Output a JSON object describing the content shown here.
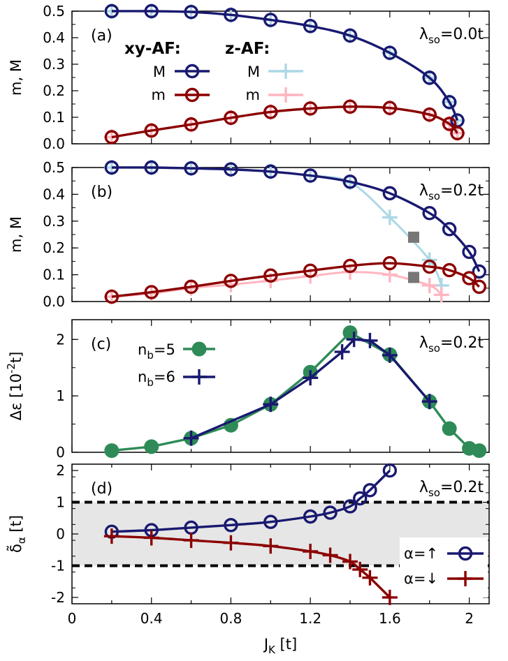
{
  "chart_data": [
    {
      "id": "a",
      "type": "line",
      "panel_label": "(a)",
      "annotation": "λso=0.0t",
      "ylabel": "m, M",
      "ylim": [
        0,
        0.5
      ],
      "yticks": [
        "0.0",
        "0.1",
        "0.2",
        "0.3",
        "0.4",
        "0.5"
      ],
      "legend": {
        "placement": "upper-left",
        "header_xy": "xy-AF:",
        "header_z": "z-AF:",
        "label_M": "M",
        "label_m": "m"
      },
      "series": [
        {
          "name": "M",
          "group": "z-AF",
          "color": "#add8e6",
          "marker": "plus",
          "x": [
            0.2,
            0.4,
            0.6,
            0.8,
            1.0,
            1.2,
            1.4,
            1.6,
            1.8,
            1.9,
            1.94
          ],
          "y": [
            0.5,
            0.5,
            0.497,
            0.486,
            0.467,
            0.444,
            0.408,
            0.343,
            0.249,
            0.157,
            0.088
          ]
        },
        {
          "name": "m",
          "group": "z-AF",
          "color": "#ffb6c1",
          "marker": "plus",
          "x": [
            0.2,
            0.4,
            0.6,
            0.8,
            1.0,
            1.2,
            1.4,
            1.6,
            1.8,
            1.9,
            1.94
          ],
          "y": [
            0.025,
            0.05,
            0.073,
            0.098,
            0.12,
            0.133,
            0.14,
            0.135,
            0.11,
            0.075,
            0.04
          ]
        },
        {
          "name": "M",
          "group": "xy-AF",
          "color": "#191970",
          "marker": "circle",
          "x": [
            0.2,
            0.4,
            0.6,
            0.8,
            1.0,
            1.2,
            1.4,
            1.6,
            1.8,
            1.9,
            1.94
          ],
          "y": [
            0.5,
            0.5,
            0.497,
            0.486,
            0.467,
            0.444,
            0.408,
            0.343,
            0.249,
            0.157,
            0.088
          ]
        },
        {
          "name": "m",
          "group": "xy-AF",
          "color": "#8b0000",
          "marker": "circle",
          "x": [
            0.2,
            0.4,
            0.6,
            0.8,
            1.0,
            1.2,
            1.4,
            1.6,
            1.8,
            1.9,
            1.94
          ],
          "y": [
            0.025,
            0.05,
            0.073,
            0.098,
            0.12,
            0.133,
            0.14,
            0.135,
            0.11,
            0.075,
            0.04
          ]
        }
      ]
    },
    {
      "id": "b",
      "type": "line",
      "panel_label": "(b)",
      "annotation": "λso=0.2t",
      "ylabel": "m, M",
      "ylim": [
        0,
        0.5
      ],
      "yticks": [
        "0.0",
        "0.1",
        "0.2",
        "0.3",
        "0.4",
        "0.5"
      ],
      "series": [
        {
          "name": "M",
          "group": "z-AF",
          "color": "#add8e6",
          "marker": "plus",
          "x": [
            0.2,
            0.4,
            0.6,
            0.8,
            1.0,
            1.2,
            1.4,
            1.6,
            1.8,
            1.86
          ],
          "y": [
            0.5,
            0.5,
            0.497,
            0.493,
            0.485,
            0.47,
            0.445,
            0.314,
            0.155,
            0.06
          ]
        },
        {
          "name": "m",
          "group": "z-AF",
          "color": "#ffb6c1",
          "marker": "plus",
          "x": [
            0.2,
            0.4,
            0.6,
            0.8,
            1.0,
            1.2,
            1.4,
            1.6,
            1.8,
            1.86
          ],
          "y": [
            0.018,
            0.03,
            0.05,
            0.063,
            0.078,
            0.095,
            0.11,
            0.1,
            0.06,
            0.025
          ]
        },
        {
          "name": "M",
          "group": "xy-AF",
          "color": "#191970",
          "marker": "circle",
          "x": [
            0.2,
            0.4,
            0.6,
            0.8,
            1.0,
            1.2,
            1.4,
            1.6,
            1.8,
            1.9,
            2.0,
            2.05
          ],
          "y": [
            0.5,
            0.5,
            0.497,
            0.493,
            0.485,
            0.47,
            0.447,
            0.404,
            0.33,
            0.27,
            0.185,
            0.112
          ]
        },
        {
          "name": "m",
          "group": "xy-AF",
          "color": "#8b0000",
          "marker": "circle",
          "x": [
            0.2,
            0.4,
            0.6,
            0.8,
            1.0,
            1.2,
            1.4,
            1.6,
            1.8,
            1.9,
            2.0,
            2.05
          ],
          "y": [
            0.018,
            0.035,
            0.055,
            0.077,
            0.097,
            0.115,
            0.133,
            0.143,
            0.13,
            0.117,
            0.087,
            0.055
          ]
        },
        {
          "name": "",
          "group": "markers",
          "color": "#777777",
          "marker": "square",
          "x": [
            1.72,
            1.72
          ],
          "y": [
            0.24,
            0.09
          ]
        }
      ]
    },
    {
      "id": "c",
      "type": "line",
      "panel_label": "(c)",
      "annotation": "λso=0.2t",
      "ylabel": "Δε [10-2t]",
      "ylim": [
        0,
        2.35
      ],
      "yticks": [
        "0",
        "1",
        "2"
      ],
      "legend": {
        "placement": "upper-left",
        "label_nb5": "nb=5",
        "label_nb6": "nb=6"
      },
      "series": [
        {
          "name": "nb=5",
          "color": "#2e8b57",
          "marker": "filled-circle",
          "x": [
            0.2,
            0.4,
            0.6,
            0.8,
            1.0,
            1.2,
            1.4,
            1.6,
            1.8,
            1.9,
            2.0,
            2.05
          ],
          "y": [
            0.03,
            0.1,
            0.25,
            0.48,
            0.85,
            1.42,
            2.12,
            1.73,
            0.9,
            0.42,
            0.07,
            0.03
          ]
        },
        {
          "name": "nb=6",
          "color": "#191970",
          "marker": "plus",
          "x": [
            0.6,
            1.0,
            1.2,
            1.36,
            1.42,
            1.5,
            1.6,
            1.8
          ],
          "y": [
            0.25,
            0.85,
            1.32,
            1.78,
            2.0,
            1.98,
            1.72,
            0.9
          ]
        }
      ]
    },
    {
      "id": "d",
      "type": "line",
      "panel_label": "(d)",
      "annotation": "λso=0.2t",
      "ylabel": "δ̃α [t]",
      "ylim": [
        -2.2,
        2.2
      ],
      "yticks": [
        "-2",
        "-1",
        "0",
        "1",
        "2"
      ],
      "band": [
        -1,
        1
      ],
      "legend": {
        "placement": "lower-right",
        "label_up": "α=↑",
        "label_down": "α=↓"
      },
      "series": [
        {
          "name": "α=↑",
          "color": "#191970",
          "marker": "circle",
          "x": [
            0.2,
            0.4,
            0.6,
            0.8,
            1.0,
            1.2,
            1.3,
            1.4,
            1.45,
            1.5,
            1.6
          ],
          "y": [
            0.07,
            0.12,
            0.2,
            0.28,
            0.38,
            0.55,
            0.67,
            0.87,
            1.12,
            1.38,
            2.0
          ]
        },
        {
          "name": "α=↓",
          "color": "#8b0000",
          "marker": "plus",
          "x": [
            0.2,
            0.4,
            0.6,
            0.8,
            1.0,
            1.2,
            1.3,
            1.4,
            1.45,
            1.5,
            1.6
          ],
          "y": [
            -0.07,
            -0.12,
            -0.2,
            -0.28,
            -0.38,
            -0.55,
            -0.67,
            -0.87,
            -1.12,
            -1.38,
            -2.0
          ]
        }
      ]
    }
  ],
  "xaxis": {
    "label": "JK [t]",
    "xlim": [
      0,
      2.1
    ],
    "ticks": [
      0,
      0.4,
      0.8,
      1.2,
      1.6,
      2.0
    ],
    "ticklabels": [
      "0",
      "0.4",
      "0.8",
      "1.2",
      "1.6",
      "2"
    ]
  }
}
